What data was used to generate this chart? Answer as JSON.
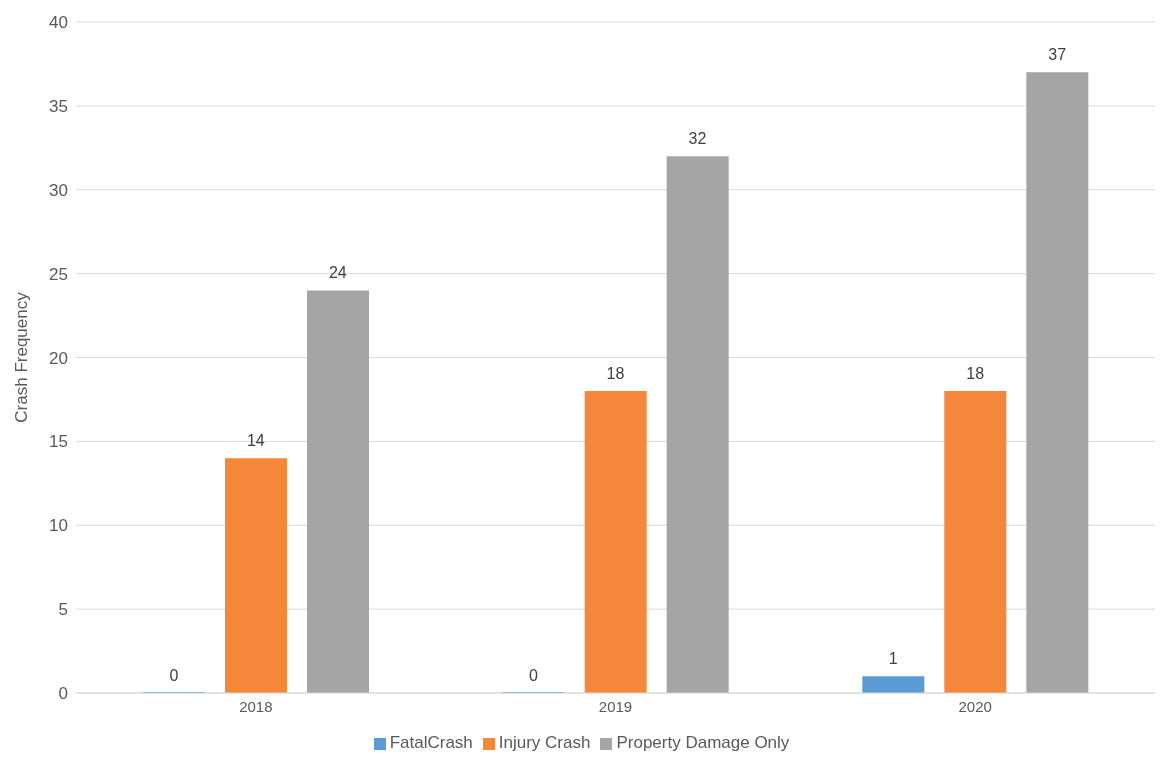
{
  "chart_data": {
    "type": "bar",
    "ylabel": "Crash Frequency",
    "categories": [
      "2018",
      "2019",
      "2020"
    ],
    "series": [
      {
        "name": "FatalCrash",
        "color": "#5b9bd5",
        "values": [
          0,
          0,
          1
        ]
      },
      {
        "name": "Injury Crash",
        "color": "#f5873a",
        "values": [
          14,
          18,
          18
        ]
      },
      {
        "name": "Property Damage Only",
        "color": "#a5a5a5",
        "values": [
          24,
          32,
          37
        ]
      }
    ],
    "ylim": [
      0,
      40
    ],
    "yticks": [
      0,
      5,
      10,
      15,
      20,
      25,
      30,
      35,
      40
    ],
    "grid": "y",
    "legend": "bottom",
    "data_labels": true
  }
}
